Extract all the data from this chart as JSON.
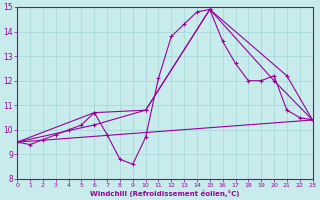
{
  "xlabel": "Windchill (Refroidissement éolien,°C)",
  "xlim": [
    0,
    23
  ],
  "ylim": [
    8,
    15
  ],
  "xticks": [
    0,
    1,
    2,
    3,
    4,
    5,
    6,
    7,
    8,
    9,
    10,
    11,
    12,
    13,
    14,
    15,
    16,
    17,
    18,
    19,
    20,
    21,
    22,
    23
  ],
  "yticks": [
    8,
    9,
    10,
    11,
    12,
    13,
    14,
    15
  ],
  "bg_color": "#c8ecec",
  "grid_color": "#aad8d8",
  "line_color": "#990099",
  "spine_color": "#990099",
  "lines": [
    {
      "x": [
        0,
        1,
        2,
        3,
        4,
        5,
        6,
        7,
        8,
        9,
        10,
        11,
        12,
        13,
        14,
        15,
        16,
        17,
        18,
        19,
        20,
        21,
        22,
        23
      ],
      "y": [
        9.5,
        9.4,
        9.6,
        9.8,
        10.0,
        10.2,
        10.7,
        9.8,
        8.8,
        8.6,
        9.7,
        12.1,
        13.8,
        14.3,
        14.8,
        14.9,
        13.6,
        12.7,
        12.0,
        12.0,
        12.2,
        10.8,
        10.5,
        10.4
      ]
    },
    {
      "x": [
        0,
        23
      ],
      "y": [
        9.5,
        10.4
      ]
    },
    {
      "x": [
        0,
        6,
        10,
        15,
        20,
        23
      ],
      "y": [
        9.5,
        10.2,
        10.8,
        14.9,
        12.0,
        10.4
      ]
    },
    {
      "x": [
        0,
        6,
        10,
        15,
        21,
        23
      ],
      "y": [
        9.5,
        10.7,
        10.8,
        14.9,
        12.2,
        10.4
      ]
    }
  ]
}
